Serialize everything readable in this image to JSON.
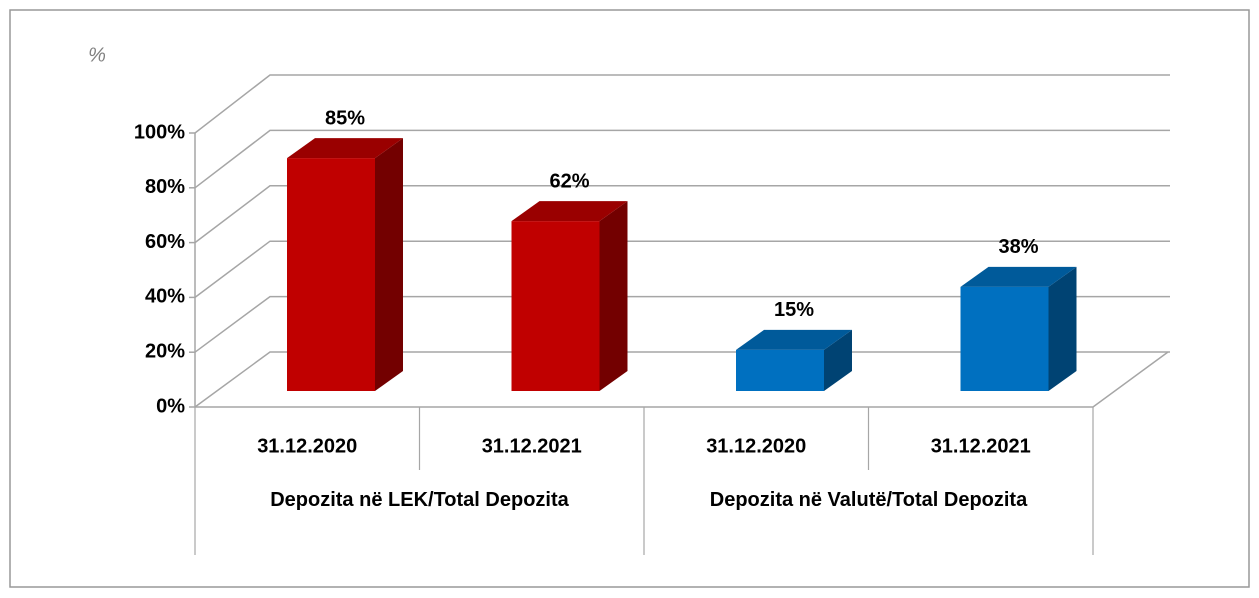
{
  "chart_data": {
    "type": "bar3d",
    "y_label": "%",
    "categories": [
      "31.12.2020",
      "31.12.2021",
      "31.12.2020",
      "31.12.2021"
    ],
    "groups": [
      "Depozita në LEK/Total Depozita",
      "Depozita në Valutë/Total Depozita"
    ],
    "values": [
      85,
      62,
      15,
      38
    ],
    "value_labels": [
      "85%",
      "62%",
      "15%",
      "38%"
    ],
    "colors": [
      "#c00000",
      "#c00000",
      "#0070c0",
      "#0070c0"
    ],
    "ylim": [
      0,
      100
    ],
    "yticks": [
      {
        "value": 0,
        "label": "0%"
      },
      {
        "value": 20,
        "label": "20%"
      },
      {
        "value": 40,
        "label": "40%"
      },
      {
        "value": 60,
        "label": "60%"
      },
      {
        "value": 80,
        "label": "80%"
      },
      {
        "value": 100,
        "label": "100%"
      }
    ],
    "grid": true
  }
}
